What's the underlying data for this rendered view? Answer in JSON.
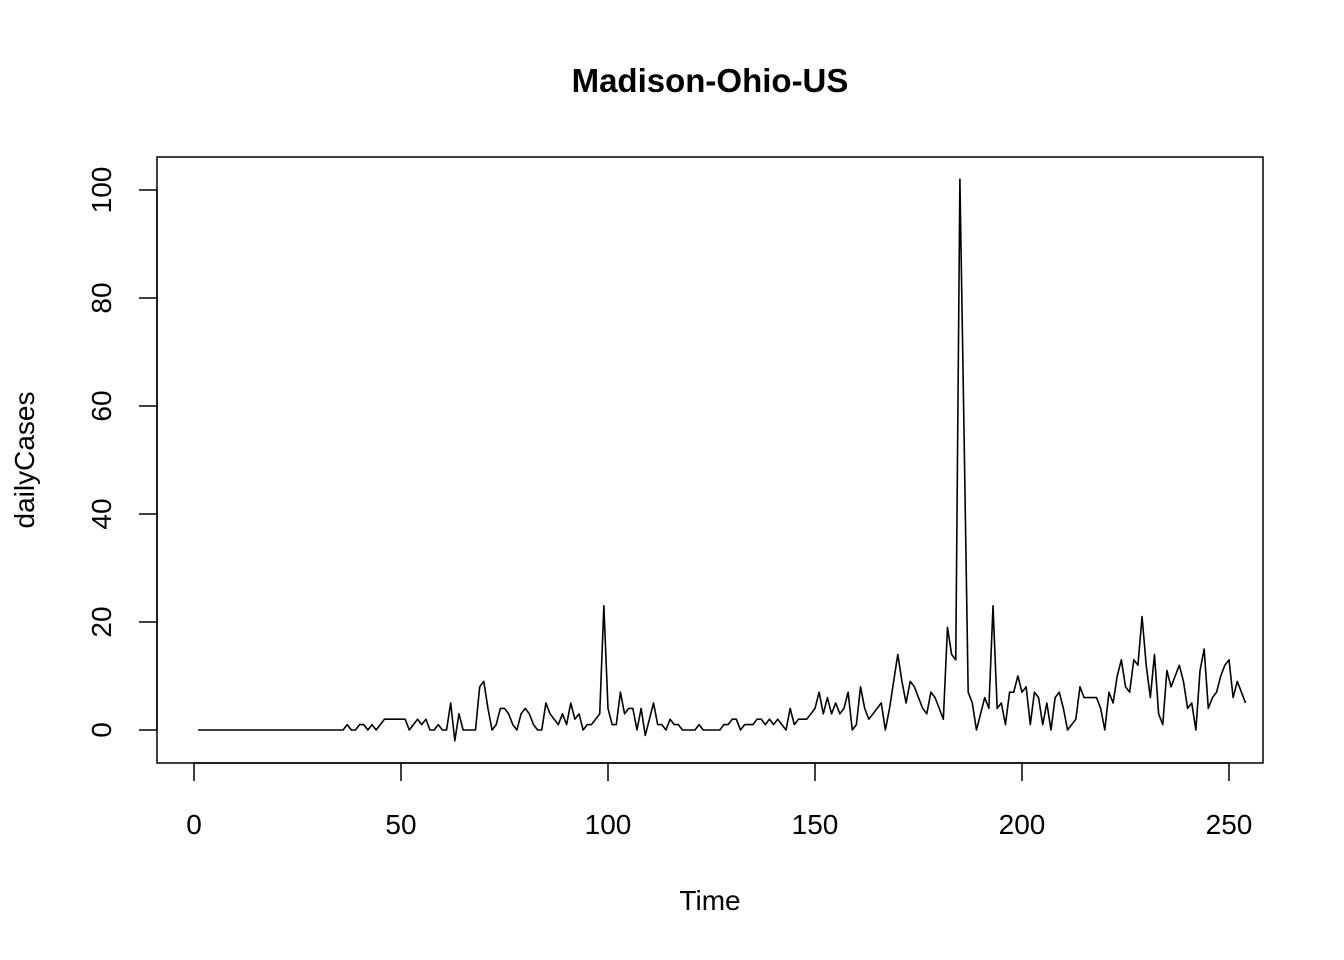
{
  "chart_data": {
    "type": "line",
    "title": "Madison-Ohio-US",
    "xlabel": "Time",
    "ylabel": "dailyCases",
    "xlim": [
      1,
      248
    ],
    "ylim": [
      -2,
      102
    ],
    "x_ticks": [
      0,
      50,
      100,
      150,
      200,
      250
    ],
    "y_ticks": [
      0,
      20,
      40,
      60,
      80,
      100
    ],
    "x_tick_labels": [
      "0",
      "50",
      "100",
      "150",
      "200",
      "250"
    ],
    "y_tick_labels": [
      "0",
      "20",
      "40",
      "60",
      "80",
      "100"
    ],
    "grid": false,
    "line_color": "#000000",
    "series": [
      {
        "x_start": 1,
        "values": [
          0,
          0,
          0,
          0,
          0,
          0,
          0,
          0,
          0,
          0,
          0,
          0,
          0,
          0,
          0,
          0,
          0,
          0,
          0,
          0,
          0,
          0,
          0,
          0,
          0,
          0,
          0,
          0,
          0,
          0,
          0,
          0,
          0,
          0,
          0,
          0,
          1,
          0,
          0,
          1,
          1,
          0,
          1,
          0,
          1,
          2,
          2,
          2,
          2,
          2,
          2,
          0,
          1,
          2,
          1,
          2,
          0,
          0,
          1,
          0,
          0,
          5,
          -2,
          3,
          0,
          0,
          0,
          0,
          8,
          9,
          4,
          0,
          1,
          4,
          4,
          3,
          1,
          0,
          3,
          4,
          3,
          1,
          0,
          0,
          5,
          3,
          2,
          1,
          3,
          1,
          5,
          2,
          3,
          0,
          1,
          1,
          2,
          3,
          23,
          4,
          1,
          1,
          7,
          3,
          4,
          4,
          0,
          4,
          -1,
          2,
          5,
          1,
          1,
          0,
          2,
          1,
          1,
          0,
          0,
          0,
          0,
          1,
          0,
          0,
          0,
          0,
          0,
          1,
          1,
          2,
          2,
          0,
          1,
          1,
          1,
          2,
          2,
          1,
          2,
          1,
          2,
          1,
          0,
          4,
          1,
          2,
          2,
          2,
          3,
          4,
          7,
          3,
          6,
          3,
          5,
          3,
          4,
          7,
          0,
          1,
          8,
          4,
          2,
          3,
          4,
          5,
          0,
          4,
          9,
          14,
          9,
          5,
          9,
          8,
          6,
          4,
          3,
          7,
          6,
          4,
          2,
          19,
          14,
          13,
          102,
          55,
          7,
          5,
          0,
          3,
          6,
          4,
          23,
          4,
          5,
          1,
          7,
          7,
          10,
          7,
          8,
          1,
          7,
          6,
          1,
          5,
          0,
          6,
          7,
          4,
          0,
          1,
          2,
          8,
          6,
          6,
          6,
          6,
          4,
          0,
          7,
          5,
          10,
          13,
          8,
          7,
          13,
          12,
          21,
          12,
          6,
          14,
          3,
          1,
          11,
          8,
          10,
          12,
          9,
          4,
          5,
          0,
          11,
          15,
          4,
          6,
          7,
          10,
          12,
          13,
          6,
          9,
          7,
          5
        ]
      }
    ]
  }
}
